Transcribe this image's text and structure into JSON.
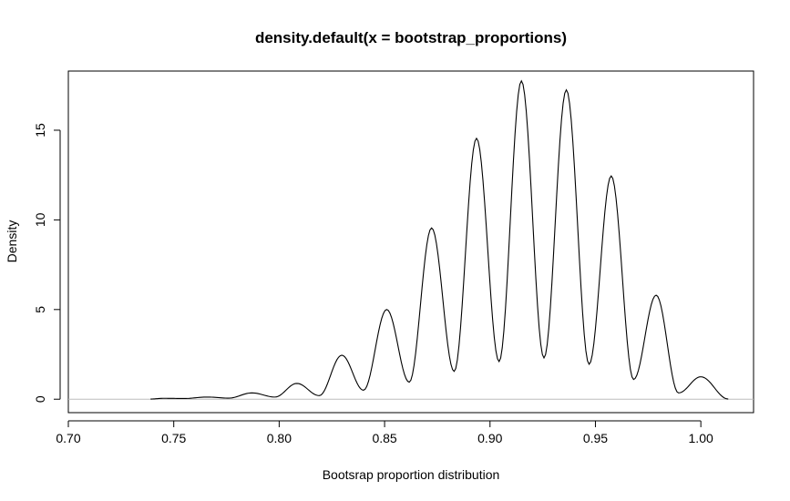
{
  "chart_data": {
    "type": "line",
    "title": "density.default(x = bootstrap_proportions)",
    "xlabel": "Bootsrap proportion distribution",
    "ylabel": "Density",
    "xlim": [
      0.7,
      1.025
    ],
    "ylim": [
      -0.75,
      18.3
    ],
    "x_ticks": [
      "0.70",
      "0.75",
      "0.80",
      "0.85",
      "0.90",
      "0.95",
      "1.00"
    ],
    "y_ticks": [
      "0",
      "5",
      "10",
      "15"
    ],
    "baseline": 0,
    "baseline_color": "#bebebe",
    "line_color": "#000000",
    "grid": false,
    "series": [
      {
        "peaks": [
          {
            "x": 0.7452,
            "y": 0.05
          },
          {
            "x": 0.7658,
            "y": 0.12
          },
          {
            "x": 0.7871,
            "y": 0.35
          },
          {
            "x": 0.8084,
            "y": 0.88
          },
          {
            "x": 0.8297,
            "y": 2.45
          },
          {
            "x": 0.851,
            "y": 5.0
          },
          {
            "x": 0.8723,
            "y": 9.55
          },
          {
            "x": 0.8936,
            "y": 14.55
          },
          {
            "x": 0.9149,
            "y": 17.75
          },
          {
            "x": 0.9362,
            "y": 17.25
          },
          {
            "x": 0.9575,
            "y": 12.45
          },
          {
            "x": 0.9788,
            "y": 5.8
          },
          {
            "x": 1.0,
            "y": 1.25
          }
        ],
        "troughs": [
          {
            "x": 0.755,
            "y": 0.04
          },
          {
            "x": 0.776,
            "y": 0.06
          },
          {
            "x": 0.798,
            "y": 0.12
          },
          {
            "x": 0.819,
            "y": 0.2
          },
          {
            "x": 0.84,
            "y": 0.5
          },
          {
            "x": 0.8617,
            "y": 0.95
          },
          {
            "x": 0.883,
            "y": 1.55
          },
          {
            "x": 0.9043,
            "y": 2.1
          },
          {
            "x": 0.9256,
            "y": 2.3
          },
          {
            "x": 0.947,
            "y": 1.95
          },
          {
            "x": 0.9681,
            "y": 1.1
          },
          {
            "x": 0.9894,
            "y": 0.35
          }
        ],
        "x_range": [
          0.739,
          1.013
        ]
      }
    ]
  }
}
